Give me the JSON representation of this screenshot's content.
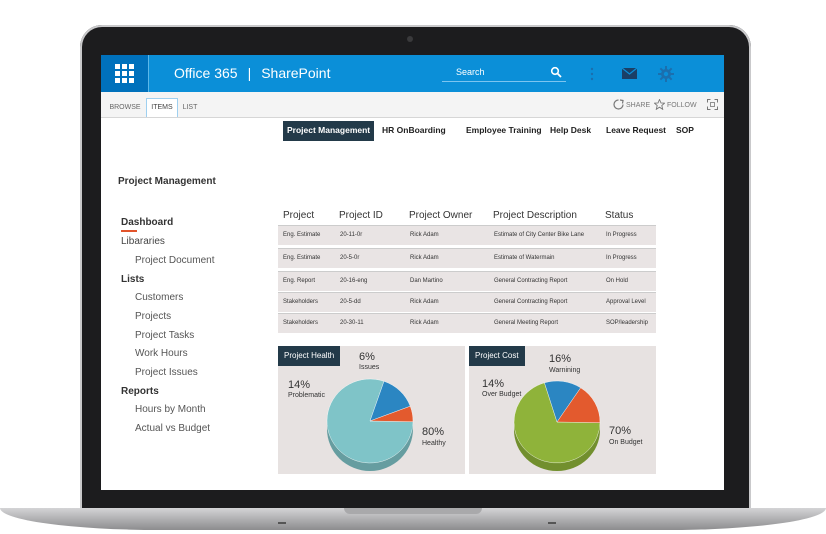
{
  "topbar": {
    "app_name": "Office 365",
    "separator": "|",
    "product": "SharePoint",
    "search_placeholder": "Search"
  },
  "ribbon": {
    "tabs": [
      "BROWSE",
      "ITEMS",
      "LIST"
    ],
    "share": "SHARE",
    "follow": "FOLLOW"
  },
  "topnav": [
    "Project Management",
    "HR OnBoarding",
    "Employee Training",
    "Help Desk",
    "Leave Request",
    "SOP"
  ],
  "page_title": "Project Management",
  "leftnav": {
    "dashboard": "Dashboard",
    "libraries": "Libararies",
    "project_document": "Project Document",
    "lists": "Lists",
    "list_items": [
      "Customers",
      "Projects",
      "Project Tasks",
      "Work Hours",
      "Project Issues"
    ],
    "reports": "Reports",
    "report_items": [
      "Hours by Month",
      "Actual vs Budget"
    ]
  },
  "table": {
    "headers": [
      "Project",
      "Project ID",
      "Project Owner",
      "Project Description",
      "Status"
    ],
    "rows": [
      [
        "Eng. Estimate",
        "20-11-0r",
        "Rick Adam",
        "Estimate of City Center Bike Lane",
        "In Progress"
      ],
      [
        "Eng. Estimate",
        "20-5-0r",
        "Rick Adam",
        "Estimate of Watermain",
        "In Progress"
      ],
      [
        "Eng. Report",
        "20-16-eng",
        "Dan Martino",
        "General Contracting  Report",
        "On Hold"
      ],
      [
        "Stakeholders",
        "20-5-dd",
        "Rick Adam",
        "General Contracting  Report",
        "Approval Level"
      ],
      [
        "Stakeholders",
        "20-30-11",
        "Rick Adam",
        "General Meeting  Report",
        "SOP/leadership"
      ]
    ]
  },
  "project_health": {
    "title": "Project Health",
    "slices": [
      {
        "pct": "80%",
        "label": "Healthy",
        "value": 80,
        "color": "#7fc4c8"
      },
      {
        "pct": "14%",
        "label": "Problematic",
        "value": 14,
        "color": "#2b86c2"
      },
      {
        "pct": "6%",
        "label": "Issues",
        "value": 6,
        "color": "#e35a2e"
      }
    ]
  },
  "project_cost": {
    "title": "Project Cost",
    "slices": [
      {
        "pct": "70%",
        "label": "On Budget",
        "value": 70,
        "color": "#8fb33a"
      },
      {
        "pct": "14%",
        "label": "Over Budget",
        "value": 14,
        "color": "#2b86c2"
      },
      {
        "pct": "16%",
        "label": "Warnining",
        "value": 16,
        "color": "#e35a2e"
      }
    ]
  }
}
